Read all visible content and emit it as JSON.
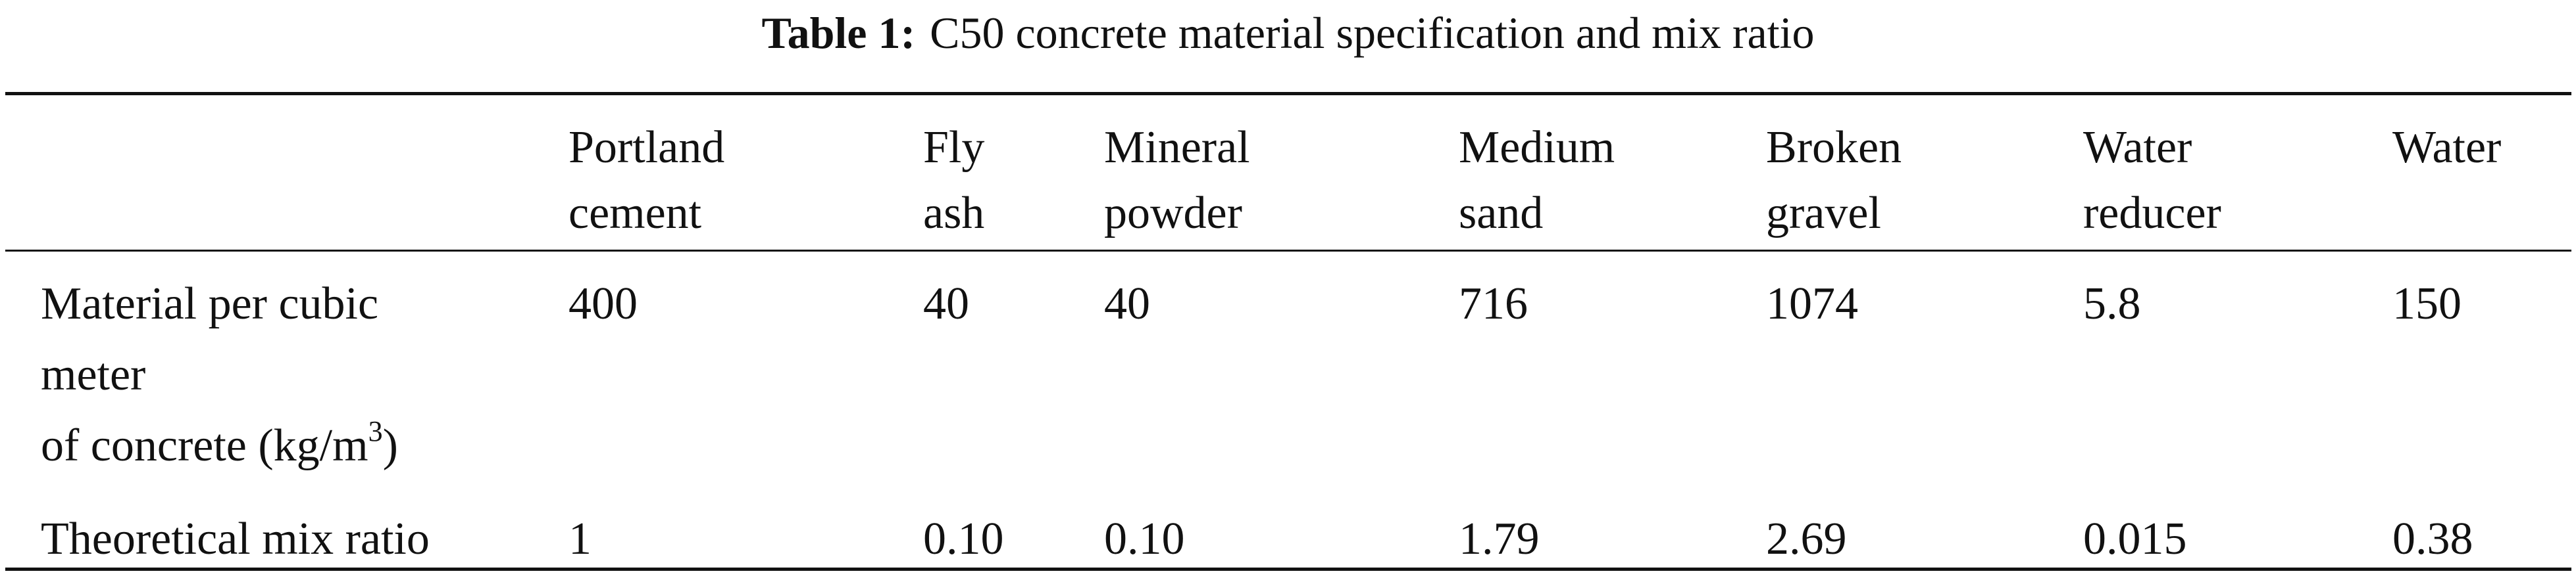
{
  "caption": {
    "label": "Table 1:",
    "text": "C50 concrete material specification and mix ratio"
  },
  "table": {
    "header": [
      [
        "Portland",
        "cement"
      ],
      [
        "Fly",
        "ash"
      ],
      [
        "Mineral",
        "powder"
      ],
      [
        "Medium",
        "sand"
      ],
      [
        "Broken",
        "gravel"
      ],
      [
        "Water",
        "reducer"
      ],
      [
        "Water"
      ]
    ],
    "rows": [
      {
        "label": [
          "Material per cubic",
          "meter",
          "of concrete (kg/m"
        ],
        "label_superscript": "3",
        "label_suffix": ")",
        "cells": [
          "400",
          "40",
          "40",
          "716",
          "1074",
          "5.8",
          "150"
        ]
      },
      {
        "label": [
          "Theoretical mix ratio"
        ],
        "cells": [
          "1",
          "0.10",
          "0.10",
          "1.79",
          "2.69",
          "0.015",
          "0.38"
        ]
      }
    ]
  }
}
